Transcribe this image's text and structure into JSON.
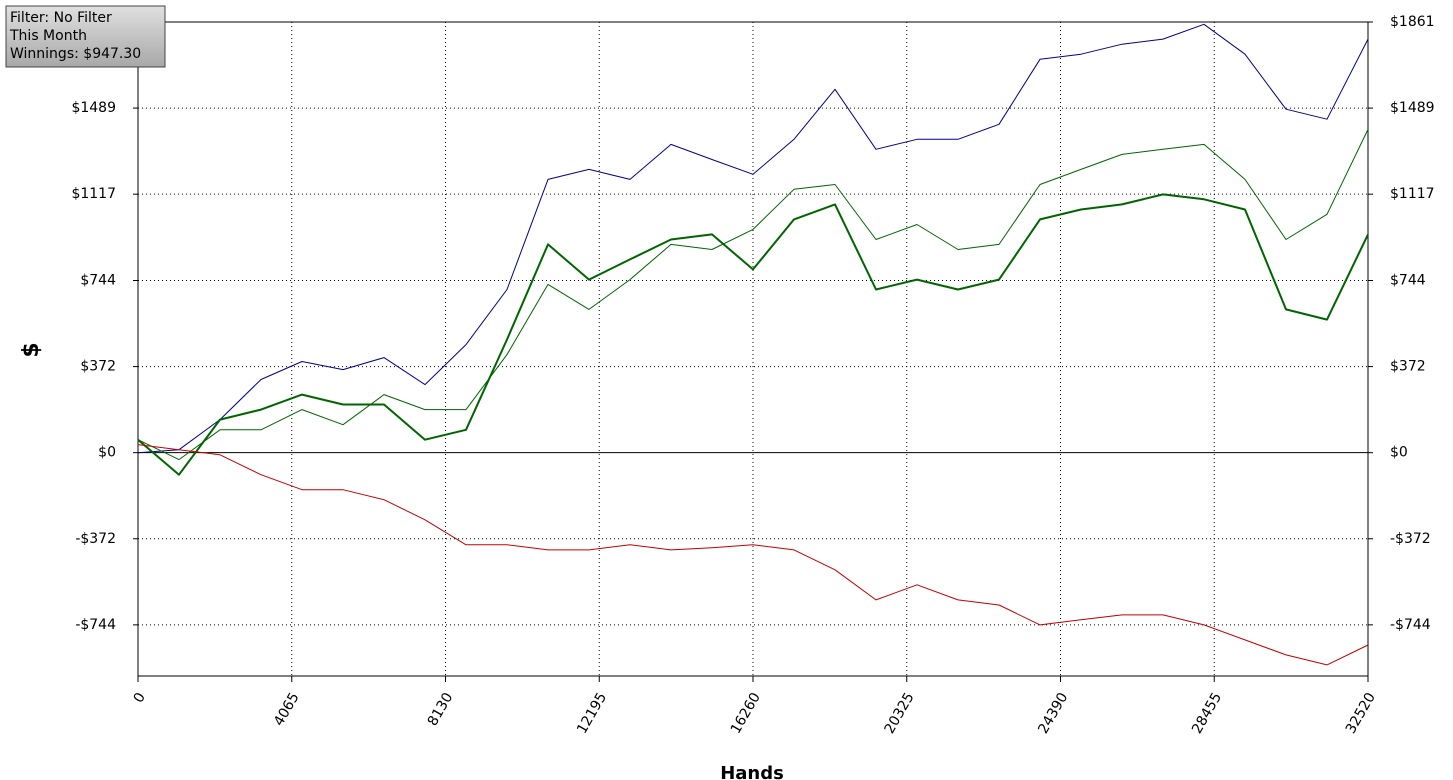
{
  "chart_data": {
    "type": "line",
    "info": [
      "Filter: No Filter",
      "This Month",
      "Winnings: $947.30"
    ],
    "xlabel": "Hands",
    "ylabel": "$",
    "x": [
      0,
      1084,
      2168,
      3252,
      4336,
      5420,
      6504,
      7588,
      8672,
      9756,
      10840,
      11924,
      13008,
      14092,
      15176,
      16260,
      17344,
      18428,
      19512,
      20596,
      21680,
      22764,
      23848,
      24932,
      26016,
      27100,
      28184,
      29268,
      30352,
      31436,
      32520
    ],
    "series": [
      {
        "color": "#00008b",
        "width": 1,
        "values": [
          0,
          13,
          143,
          316,
          394,
          359,
          411,
          294,
          467,
          705,
          1181,
          1224,
          1181,
          1332,
          1267,
          1203,
          1354,
          1570,
          1311,
          1354,
          1354,
          1419,
          1700,
          1722,
          1765,
          1787,
          1851,
          1722,
          1484,
          1441,
          1787
        ]
      },
      {
        "color": "#006400",
        "width": 2,
        "values": [
          56,
          -95,
          143,
          186,
          251,
          208,
          208,
          56,
          99,
          489,
          900,
          748,
          835,
          921,
          943,
          792,
          1008,
          1073,
          705,
          748,
          705,
          748,
          1008,
          1051,
          1073,
          1116,
          1095,
          1051,
          619,
          575,
          943
        ]
      },
      {
        "color": "#006400",
        "width": 1,
        "values": [
          56,
          -30,
          99,
          99,
          186,
          121,
          251,
          186,
          186,
          424,
          727,
          619,
          748,
          900,
          878,
          965,
          1138,
          1159,
          921,
          986,
          878,
          900,
          1159,
          1224,
          1289,
          1311,
          1332,
          1181,
          921,
          1030,
          1397
        ]
      },
      {
        "color": "#c00000",
        "width": 1,
        "values": [
          35,
          13,
          -9,
          -95,
          -160,
          -160,
          -203,
          -290,
          -398,
          -398,
          -420,
          -420,
          -398,
          -420,
          -411,
          -398,
          -420,
          -506,
          -636,
          -571,
          -636,
          -658,
          -744,
          -722,
          -701,
          -701,
          -744,
          -809,
          -874,
          -917,
          -831
        ]
      }
    ],
    "xlim": [
      0,
      32520
    ],
    "xticks": [
      0,
      4065,
      8130,
      12195,
      16260,
      20325,
      24390,
      28455,
      32520
    ],
    "ylim": [
      -965,
      1861
    ],
    "yticks": [
      {
        "value": -744,
        "label": "-$744"
      },
      {
        "value": -372,
        "label": "-$372"
      },
      {
        "value": 0,
        "label": "$0"
      },
      {
        "value": 372,
        "label": "$372"
      },
      {
        "value": 744,
        "label": "$744"
      },
      {
        "value": 1117,
        "label": "$1117"
      },
      {
        "value": 1489,
        "label": "$1489"
      }
    ],
    "y2lim": [
      -965,
      1861
    ],
    "y2ticks": [
      {
        "value": -744,
        "label": "-$744"
      },
      {
        "value": -372,
        "label": "-$372"
      },
      {
        "value": 0,
        "label": "$0"
      },
      {
        "value": 372,
        "label": "$372"
      },
      {
        "value": 744,
        "label": "$744"
      },
      {
        "value": 1117,
        "label": "$1117"
      },
      {
        "value": 1489,
        "label": "$1489"
      },
      {
        "value": 1861,
        "label": "$1861"
      }
    ],
    "grid": true
  }
}
